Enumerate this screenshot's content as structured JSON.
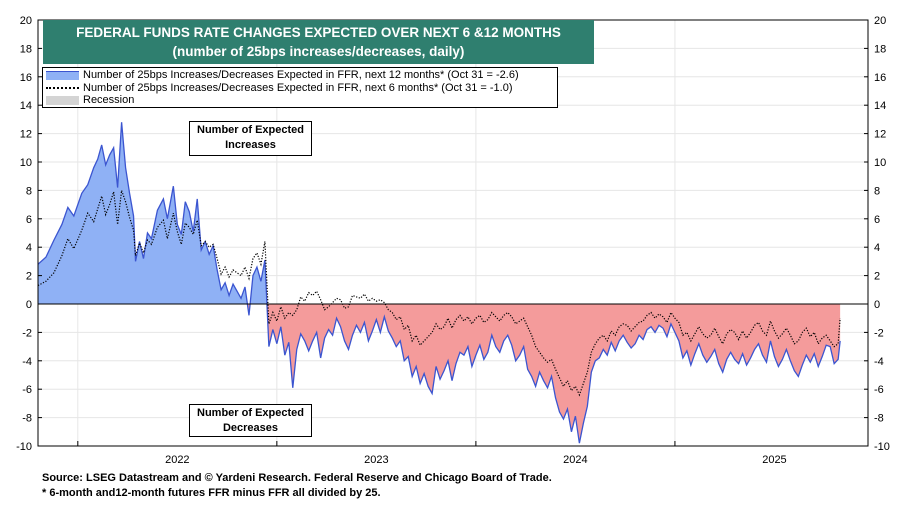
{
  "colors": {
    "title_bg": "#2f7f6f",
    "positive_fill": "#8fb1f5",
    "negative_fill": "#f49b9b",
    "line_12m": "#3b55d0",
    "line_6m": "#000000",
    "recession": "#d4d4d4"
  },
  "chart_data": {
    "type": "area",
    "title": "FEDERAL FUNDS RATE CHANGES EXPECTED OVER NEXT 6 &12 MONTHS",
    "subtitle": "(number of 25bps increases/decreases, daily)",
    "xlabel": "",
    "ylabel": "",
    "ylim": [
      -10,
      20
    ],
    "xlim": [
      2021.8,
      2025.97
    ],
    "y_ticks": [
      20,
      18,
      16,
      14,
      12,
      10,
      8,
      6,
      4,
      2,
      0,
      -2,
      -4,
      -6,
      -8,
      -10
    ],
    "x_year_labels": [
      {
        "label": "2022",
        "center": 2022.5
      },
      {
        "label": "2023",
        "center": 2023.5
      },
      {
        "label": "2024",
        "center": 2024.5
      },
      {
        "label": "2025",
        "center": 2025.5
      }
    ],
    "x_year_bounds": [
      2022,
      2023,
      2024,
      2025
    ],
    "legend": [
      "Number of 25bps Increases/Decreases Expected in FFR, next 12 months* (Oct 31 = -2.6)",
      "Number of 25bps Increases/Decreases Expected in FFR, next 6 months* (Oct 31 = -1.0)",
      "Recession"
    ],
    "annotations": {
      "increases": [
        "Number of Expected",
        "Increases"
      ],
      "decreases": [
        "Number of Expected",
        "Decreases"
      ]
    },
    "series": [
      {
        "name": "next 12 months",
        "x": [
          2021.8,
          2021.84,
          2021.88,
          2021.92,
          2021.95,
          2021.98,
          2022.02,
          2022.05,
          2022.08,
          2022.1,
          2022.12,
          2022.14,
          2022.16,
          2022.18,
          2022.2,
          2022.22,
          2022.24,
          2022.26,
          2022.28,
          2022.29,
          2022.31,
          2022.33,
          2022.35,
          2022.37,
          2022.4,
          2022.43,
          2022.45,
          2022.48,
          2022.5,
          2022.52,
          2022.54,
          2022.56,
          2022.58,
          2022.6,
          2022.62,
          2022.64,
          2022.66,
          2022.68,
          2022.7,
          2022.72,
          2022.74,
          2022.76,
          2022.78,
          2022.8,
          2022.82,
          2022.84,
          2022.86,
          2022.88,
          2022.9,
          2022.92,
          2022.94,
          2022.96,
          2022.98,
          2023.0,
          2023.02,
          2023.04,
          2023.06,
          2023.08,
          2023.1,
          2023.12,
          2023.14,
          2023.16,
          2023.18,
          2023.2,
          2023.22,
          2023.24,
          2023.26,
          2023.28,
          2023.3,
          2023.32,
          2023.34,
          2023.36,
          2023.38,
          2023.4,
          2023.42,
          2023.44,
          2023.46,
          2023.48,
          2023.5,
          2023.52,
          2023.54,
          2023.56,
          2023.58,
          2023.6,
          2023.62,
          2023.64,
          2023.66,
          2023.68,
          2023.7,
          2023.72,
          2023.74,
          2023.76,
          2023.78,
          2023.8,
          2023.82,
          2023.84,
          2023.86,
          2023.88,
          2023.9,
          2023.92,
          2023.94,
          2023.96,
          2023.98,
          2024.0,
          2024.02,
          2024.04,
          2024.06,
          2024.08,
          2024.1,
          2024.12,
          2024.14,
          2024.16,
          2024.18,
          2024.2,
          2024.22,
          2024.24,
          2024.26,
          2024.28,
          2024.3,
          2024.32,
          2024.34,
          2024.36,
          2024.38,
          2024.4,
          2024.42,
          2024.44,
          2024.46,
          2024.48,
          2024.5,
          2024.52,
          2024.54,
          2024.56,
          2024.58,
          2024.6,
          2024.62,
          2024.64,
          2024.66,
          2024.68,
          2024.7,
          2024.72,
          2024.74,
          2024.76,
          2024.78,
          2024.8,
          2024.82,
          2024.84,
          2024.86,
          2024.88,
          2024.9,
          2024.92,
          2024.94,
          2024.96,
          2024.98,
          2025.0,
          2025.02,
          2025.04,
          2025.06,
          2025.08,
          2025.1,
          2025.12,
          2025.14,
          2025.16,
          2025.18,
          2025.2,
          2025.22,
          2025.24,
          2025.26,
          2025.28,
          2025.3,
          2025.32,
          2025.34,
          2025.36,
          2025.38,
          2025.4,
          2025.42,
          2025.44,
          2025.46,
          2025.48,
          2025.5,
          2025.52,
          2025.54,
          2025.56,
          2025.58,
          2025.6,
          2025.62,
          2025.64,
          2025.66,
          2025.68,
          2025.7,
          2025.72,
          2025.74,
          2025.76,
          2025.78,
          2025.8,
          2025.82,
          2025.83
        ],
        "y": [
          2.8,
          3.3,
          4.5,
          5.6,
          6.8,
          6.2,
          7.8,
          8.4,
          9.6,
          10.2,
          11.2,
          9.8,
          10.5,
          11.0,
          8.2,
          12.8,
          9.6,
          7.8,
          6.2,
          3.0,
          4.4,
          3.2,
          5.0,
          4.6,
          6.6,
          7.4,
          6.0,
          8.3,
          5.6,
          4.9,
          7.2,
          6.5,
          5.1,
          7.4,
          3.8,
          4.4,
          3.5,
          4.1,
          2.4,
          1.0,
          1.5,
          0.6,
          1.4,
          0.9,
          0.4,
          1.2,
          -0.8,
          2.0,
          2.6,
          1.6,
          3.1,
          -3.0,
          -1.8,
          -2.8,
          -1.6,
          -3.6,
          -2.7,
          -5.9,
          -3.2,
          -2.1,
          -2.6,
          -3.3,
          -2.6,
          -2.0,
          -3.8,
          -2.4,
          -1.8,
          -2.2,
          -1.0,
          -1.6,
          -2.6,
          -3.2,
          -2.2,
          -1.5,
          -2.0,
          -1.3,
          -2.6,
          -1.9,
          -1.1,
          -2.0,
          -0.9,
          -1.9,
          -2.4,
          -3.0,
          -2.6,
          -4.0,
          -3.7,
          -5.1,
          -4.4,
          -5.6,
          -4.9,
          -5.8,
          -6.3,
          -4.4,
          -5.3,
          -4.7,
          -4.0,
          -5.4,
          -4.2,
          -3.4,
          -3.6,
          -3.0,
          -4.4,
          -3.6,
          -2.9,
          -3.9,
          -3.4,
          -2.2,
          -3.0,
          -3.4,
          -2.6,
          -2.2,
          -2.9,
          -4.0,
          -3.6,
          -3.0,
          -4.6,
          -5.1,
          -5.8,
          -4.8,
          -5.4,
          -5.9,
          -5.1,
          -6.6,
          -7.6,
          -8.1,
          -7.4,
          -9.0,
          -7.9,
          -9.8,
          -8.4,
          -7.2,
          -4.8,
          -4.0,
          -3.8,
          -3.2,
          -3.6,
          -2.7,
          -3.3,
          -2.6,
          -2.2,
          -2.7,
          -3.1,
          -2.8,
          -2.2,
          -2.5,
          -1.8,
          -1.6,
          -2.0,
          -1.5,
          -1.7,
          -2.3,
          -1.4,
          -2.0,
          -2.6,
          -3.8,
          -3.3,
          -4.3,
          -3.5,
          -2.8,
          -3.6,
          -4.1,
          -3.7,
          -3.2,
          -4.2,
          -4.8,
          -3.9,
          -3.4,
          -3.9,
          -4.2,
          -3.5,
          -4.3,
          -3.8,
          -3.2,
          -2.8,
          -3.6,
          -4.1,
          -2.6,
          -3.7,
          -4.4,
          -3.9,
          -3.2,
          -4.0,
          -4.7,
          -5.1,
          -4.3,
          -3.6,
          -4.1,
          -3.5,
          -4.4,
          -3.7,
          -2.9,
          -3.0,
          -4.2,
          -3.9,
          -2.6
        ]
      },
      {
        "name": "next 6 months",
        "x": [
          2021.8,
          2021.84,
          2021.88,
          2021.92,
          2021.95,
          2021.98,
          2022.02,
          2022.05,
          2022.08,
          2022.1,
          2022.12,
          2022.14,
          2022.16,
          2022.18,
          2022.2,
          2022.22,
          2022.24,
          2022.26,
          2022.28,
          2022.29,
          2022.31,
          2022.33,
          2022.35,
          2022.37,
          2022.4,
          2022.43,
          2022.45,
          2022.48,
          2022.5,
          2022.52,
          2022.54,
          2022.56,
          2022.58,
          2022.6,
          2022.62,
          2022.64,
          2022.66,
          2022.68,
          2022.7,
          2022.72,
          2022.74,
          2022.76,
          2022.78,
          2022.8,
          2022.82,
          2022.84,
          2022.86,
          2022.88,
          2022.9,
          2022.92,
          2022.94,
          2022.96,
          2022.98,
          2023.0,
          2023.02,
          2023.04,
          2023.06,
          2023.08,
          2023.1,
          2023.12,
          2023.14,
          2023.16,
          2023.18,
          2023.2,
          2023.22,
          2023.24,
          2023.26,
          2023.28,
          2023.3,
          2023.32,
          2023.34,
          2023.36,
          2023.38,
          2023.4,
          2023.42,
          2023.44,
          2023.46,
          2023.48,
          2023.5,
          2023.52,
          2023.54,
          2023.56,
          2023.58,
          2023.6,
          2023.62,
          2023.64,
          2023.66,
          2023.68,
          2023.7,
          2023.72,
          2023.74,
          2023.76,
          2023.78,
          2023.8,
          2023.82,
          2023.84,
          2023.86,
          2023.88,
          2023.9,
          2023.92,
          2023.94,
          2023.96,
          2023.98,
          2024.0,
          2024.02,
          2024.04,
          2024.06,
          2024.08,
          2024.1,
          2024.12,
          2024.14,
          2024.16,
          2024.18,
          2024.2,
          2024.22,
          2024.24,
          2024.26,
          2024.28,
          2024.3,
          2024.32,
          2024.34,
          2024.36,
          2024.38,
          2024.4,
          2024.42,
          2024.44,
          2024.46,
          2024.48,
          2024.5,
          2024.52,
          2024.54,
          2024.56,
          2024.58,
          2024.6,
          2024.62,
          2024.64,
          2024.66,
          2024.68,
          2024.7,
          2024.72,
          2024.74,
          2024.76,
          2024.78,
          2024.8,
          2024.82,
          2024.84,
          2024.86,
          2024.88,
          2024.9,
          2024.92,
          2024.94,
          2024.96,
          2024.98,
          2025.0,
          2025.02,
          2025.04,
          2025.06,
          2025.08,
          2025.1,
          2025.12,
          2025.14,
          2025.16,
          2025.18,
          2025.2,
          2025.22,
          2025.24,
          2025.26,
          2025.28,
          2025.3,
          2025.32,
          2025.34,
          2025.36,
          2025.38,
          2025.4,
          2025.42,
          2025.44,
          2025.46,
          2025.48,
          2025.5,
          2025.52,
          2025.54,
          2025.56,
          2025.58,
          2025.6,
          2025.62,
          2025.64,
          2025.66,
          2025.68,
          2025.7,
          2025.72,
          2025.74,
          2025.76,
          2025.78,
          2025.8,
          2025.82,
          2025.83
        ],
        "y": [
          1.3,
          1.6,
          2.2,
          3.4,
          4.6,
          3.9,
          5.2,
          6.4,
          5.8,
          6.7,
          7.6,
          6.3,
          7.0,
          7.9,
          5.6,
          8.0,
          7.2,
          6.1,
          5.2,
          3.4,
          4.3,
          3.6,
          4.5,
          4.2,
          5.4,
          5.9,
          4.6,
          6.4,
          5.1,
          4.2,
          5.7,
          5.4,
          4.9,
          5.9,
          4.1,
          4.4,
          4.0,
          4.2,
          3.2,
          2.1,
          2.6,
          1.9,
          2.4,
          2.2,
          2.0,
          2.6,
          1.8,
          3.2,
          3.6,
          2.8,
          4.4,
          -1.4,
          -0.6,
          -1.2,
          -0.2,
          -1.0,
          -0.6,
          -0.8,
          -0.4,
          0.5,
          0.2,
          0.8,
          0.6,
          0.9,
          0.3,
          -0.4,
          -0.2,
          0.1,
          0.4,
          0.3,
          -0.3,
          -0.2,
          0.6,
          0.5,
          0.4,
          0.7,
          0.2,
          0.4,
          0.2,
          0.3,
          0.1,
          -0.4,
          -0.6,
          -1.1,
          -0.9,
          -1.8,
          -1.5,
          -2.6,
          -2.2,
          -2.9,
          -2.6,
          -2.3,
          -2.0,
          -1.4,
          -1.8,
          -1.6,
          -1.0,
          -1.7,
          -1.1,
          -0.8,
          -1.2,
          -0.9,
          -1.4,
          -1.0,
          -0.8,
          -1.3,
          -1.1,
          -0.6,
          -0.9,
          -1.2,
          -0.8,
          -0.6,
          -0.9,
          -1.4,
          -1.2,
          -1.0,
          -1.6,
          -2.2,
          -3.0,
          -3.4,
          -3.8,
          -4.1,
          -3.9,
          -4.6,
          -5.2,
          -5.8,
          -5.4,
          -6.1,
          -5.8,
          -6.4,
          -5.6,
          -4.8,
          -3.4,
          -2.8,
          -2.4,
          -2.2,
          -2.6,
          -1.9,
          -2.2,
          -1.6,
          -1.4,
          -1.5,
          -1.9,
          -1.6,
          -1.3,
          -1.2,
          -0.8,
          -0.6,
          -1.0,
          -0.7,
          -0.9,
          -1.3,
          -0.6,
          -1.0,
          -1.3,
          -2.2,
          -2.0,
          -2.6,
          -2.1,
          -1.6,
          -2.1,
          -2.4,
          -2.2,
          -1.7,
          -2.3,
          -2.8,
          -2.1,
          -1.8,
          -2.0,
          -2.5,
          -1.9,
          -2.4,
          -2.0,
          -1.5,
          -1.3,
          -1.9,
          -2.2,
          -1.2,
          -1.9,
          -2.4,
          -2.1,
          -1.7,
          -2.2,
          -2.8,
          -2.6,
          -2.0,
          -1.7,
          -2.3,
          -2.0,
          -2.8,
          -2.4,
          -2.2,
          -2.6,
          -3.0,
          -2.8,
          -1.0
        ]
      }
    ]
  },
  "source": {
    "line1": "Source: LSEG Datastream and © Yardeni Research. Federal Reserve and Chicago Board of Trade.",
    "line2": "* 6-month and12-month futures FFR minus FFR all divided by 25."
  }
}
